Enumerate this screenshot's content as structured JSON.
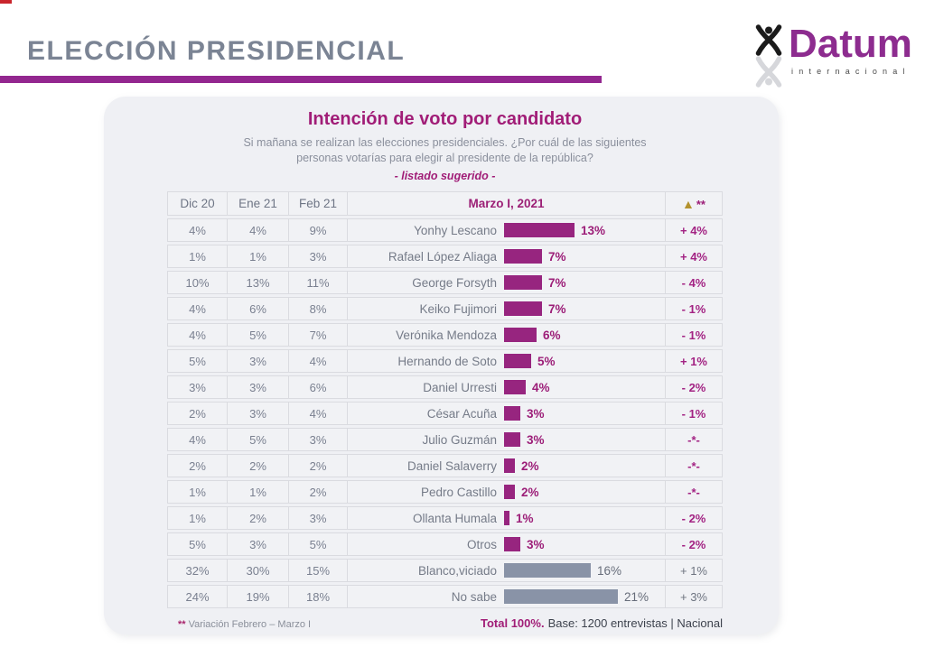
{
  "page": {
    "background": "#ffffff",
    "corner_mark_color": "#c9252c"
  },
  "header": {
    "title": "ELECCIÓN PRESIDENCIAL",
    "title_color": "#7b8494",
    "rule_color": "#93278f"
  },
  "logo": {
    "brand": "Datum",
    "brand_color": "#8d2c8f",
    "subtitle": "internacional",
    "icon": "datum-figure-icon"
  },
  "panel": {
    "title": "Intención de voto por candidato",
    "subtitle_line1": "Si mañana se realizan las elecciones presidenciales. ¿Por cuál de las siguientes",
    "subtitle_line2": "personas votarías para elegir al presidente de la república?",
    "note": "- listado sugerido -",
    "accent_color": "#a11d77"
  },
  "table": {
    "columns": [
      "Dic 20",
      "Ene 21",
      "Feb 21",
      "Marzo I, 2021"
    ],
    "delta_triangle": "▲",
    "delta_stars": "**",
    "triangle_color": "#b3922e"
  },
  "colors": {
    "candidate": "#97257f",
    "gray": "#8993a7"
  },
  "rows": [
    {
      "dic": "4%",
      "ene": "4%",
      "feb": "9%",
      "name": "Yonhy Lescano",
      "value": "13%",
      "pct": 13,
      "change": "+ 4%",
      "type": "candidate"
    },
    {
      "dic": "1%",
      "ene": "1%",
      "feb": "3%",
      "name": "Rafael López Aliaga",
      "value": "7%",
      "pct": 7,
      "change": "+ 4%",
      "type": "candidate"
    },
    {
      "dic": "10%",
      "ene": "13%",
      "feb": "11%",
      "name": "George Forsyth",
      "value": "7%",
      "pct": 7,
      "change": "- 4%",
      "type": "candidate"
    },
    {
      "dic": "4%",
      "ene": "6%",
      "feb": "8%",
      "name": "Keiko Fujimori",
      "value": "7%",
      "pct": 7,
      "change": "- 1%",
      "type": "candidate"
    },
    {
      "dic": "4%",
      "ene": "5%",
      "feb": "7%",
      "name": "Verónika Mendoza",
      "value": "6%",
      "pct": 6,
      "change": "- 1%",
      "type": "candidate"
    },
    {
      "dic": "5%",
      "ene": "3%",
      "feb": "4%",
      "name": "Hernando de Soto",
      "value": "5%",
      "pct": 5,
      "change": "+ 1%",
      "type": "candidate"
    },
    {
      "dic": "3%",
      "ene": "3%",
      "feb": "6%",
      "name": "Daniel Urresti",
      "value": "4%",
      "pct": 4,
      "change": "- 2%",
      "type": "candidate"
    },
    {
      "dic": "2%",
      "ene": "3%",
      "feb": "4%",
      "name": "César Acuña",
      "value": "3%",
      "pct": 3,
      "change": "- 1%",
      "type": "candidate"
    },
    {
      "dic": "4%",
      "ene": "5%",
      "feb": "3%",
      "name": "Julio Guzmán",
      "value": "3%",
      "pct": 3,
      "change": "-*-",
      "type": "candidate"
    },
    {
      "dic": "2%",
      "ene": "2%",
      "feb": "2%",
      "name": "Daniel Salaverry",
      "value": "2%",
      "pct": 2,
      "change": "-*-",
      "type": "candidate"
    },
    {
      "dic": "1%",
      "ene": "1%",
      "feb": "2%",
      "name": "Pedro Castillo",
      "value": "2%",
      "pct": 2,
      "change": "-*-",
      "type": "candidate"
    },
    {
      "dic": "1%",
      "ene": "2%",
      "feb": "3%",
      "name": "Ollanta Humala",
      "value": "1%",
      "pct": 1,
      "change": "- 2%",
      "type": "candidate"
    },
    {
      "dic": "5%",
      "ene": "3%",
      "feb": "5%",
      "name": "Otros",
      "value": "3%",
      "pct": 3,
      "change": "- 2%",
      "type": "candidate"
    },
    {
      "dic": "32%",
      "ene": "30%",
      "feb": "15%",
      "name": "Blanco,viciado",
      "value": "16%",
      "pct": 16,
      "change": "+ 1%",
      "type": "gray"
    },
    {
      "dic": "24%",
      "ene": "19%",
      "feb": "18%",
      "name": "No sabe",
      "value": "21%",
      "pct": 21,
      "change": "+ 3%",
      "type": "gray"
    }
  ],
  "footer": {
    "note_stars": "**",
    "note_text": "Variación Febrero – Marzo I",
    "total": "Total 100%.",
    "base": "Base: 1200 entrevistas | Nacional"
  },
  "chart_data": {
    "type": "bar",
    "orientation": "horizontal",
    "title": "Intención de voto por candidato",
    "subtitle": "Si mañana se realizan las elecciones presidenciales. ¿Por cuál de las siguientes personas votarías para elegir al presidente de la república? - listado sugerido -",
    "categories": [
      "Yonhy Lescano",
      "Rafael López Aliaga",
      "George Forsyth",
      "Keiko Fujimori",
      "Verónika Mendoza",
      "Hernando de Soto",
      "Daniel Urresti",
      "César Acuña",
      "Julio Guzmán",
      "Daniel Salaverry",
      "Pedro Castillo",
      "Ollanta Humala",
      "Otros",
      "Blanco,viciado",
      "No sabe"
    ],
    "series": [
      {
        "name": "Dic 20",
        "values": [
          4,
          1,
          10,
          4,
          4,
          5,
          3,
          2,
          4,
          2,
          1,
          1,
          5,
          32,
          24
        ]
      },
      {
        "name": "Ene 21",
        "values": [
          4,
          1,
          13,
          6,
          5,
          3,
          3,
          3,
          5,
          2,
          1,
          2,
          3,
          30,
          19
        ]
      },
      {
        "name": "Feb 21",
        "values": [
          9,
          3,
          11,
          8,
          7,
          4,
          6,
          4,
          3,
          2,
          2,
          3,
          5,
          15,
          18
        ]
      },
      {
        "name": "Marzo I, 2021",
        "values": [
          13,
          7,
          7,
          7,
          6,
          5,
          4,
          3,
          3,
          2,
          2,
          1,
          3,
          16,
          21
        ]
      }
    ],
    "bar_series_shown": "Marzo I, 2021",
    "variation_feb_marzo": [
      "+ 4%",
      "+ 4%",
      "- 4%",
      "- 1%",
      "- 1%",
      "+ 1%",
      "- 2%",
      "- 1%",
      "-*-",
      "-*-",
      "-*-",
      "- 2%",
      "- 2%",
      "+ 1%",
      "+ 3%"
    ],
    "unit": "%",
    "xlim": [
      0,
      25
    ],
    "grid": false,
    "legend_position": "table-header",
    "footnote": "** Variación Febrero – Marzo I — Total 100%. Base: 1200 entrevistas | Nacional"
  }
}
